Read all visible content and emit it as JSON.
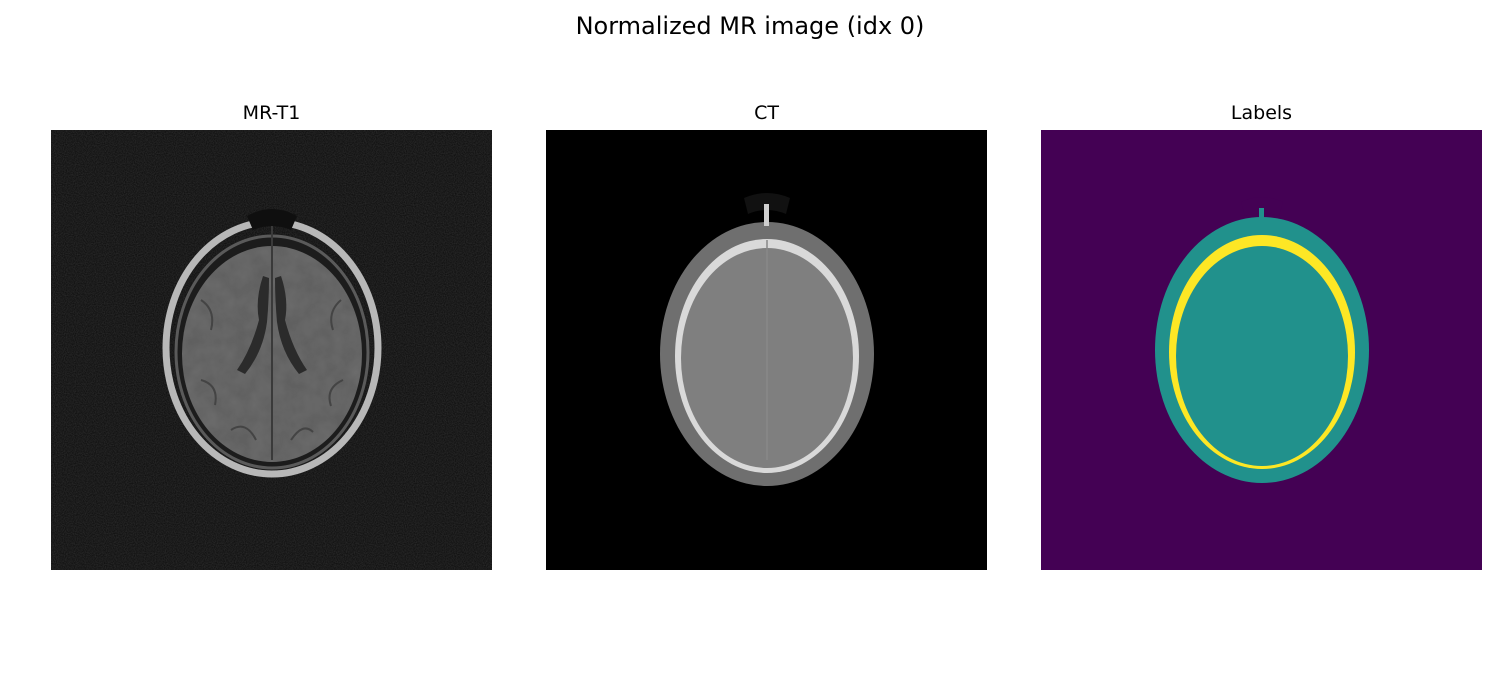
{
  "figure": {
    "title": "Normalized MR image (idx 0)"
  },
  "panels": [
    {
      "title": "MR-T1",
      "colormap": "gray",
      "background": "#080808"
    },
    {
      "title": "CT",
      "colormap": "gray",
      "background": "#000000"
    },
    {
      "title": "Labels",
      "colormap": "viridis",
      "label_colors": {
        "background": "#440154",
        "soft_tissue": "#21918c",
        "bone": "#fde725"
      }
    }
  ]
}
